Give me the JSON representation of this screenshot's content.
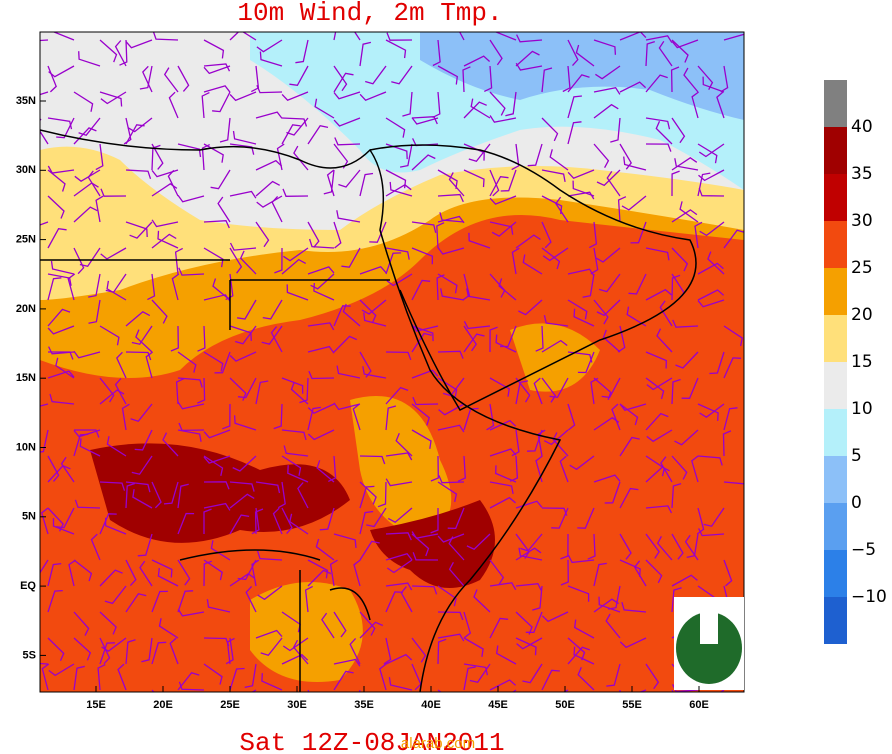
{
  "title": "10m Wind, 2m Tmp.",
  "footer": "Sat 12Z-08JAN2011",
  "watermark": "alarab.com",
  "lat_labels": [
    "35N",
    "30N",
    "25N",
    "20N",
    "15N",
    "10N",
    "5N",
    "EQ",
    "5S"
  ],
  "lon_labels": [
    "15E",
    "20E",
    "25E",
    "30E",
    "35E",
    "40E",
    "45E",
    "50E",
    "55E",
    "60E"
  ],
  "colorbar": {
    "labels": [
      "40",
      "35",
      "30",
      "25",
      "20",
      "15",
      "10",
      "5",
      "0",
      "−5",
      "−10"
    ],
    "colors": [
      "#808080",
      "#a00000",
      "#c00000",
      "#f24a0f",
      "#f5a000",
      "#ffe07a",
      "#ebebeb",
      "#b4f0fa",
      "#8cc0f8",
      "#5a9ff0",
      "#2c80e8",
      "#1e60d0"
    ]
  }
}
